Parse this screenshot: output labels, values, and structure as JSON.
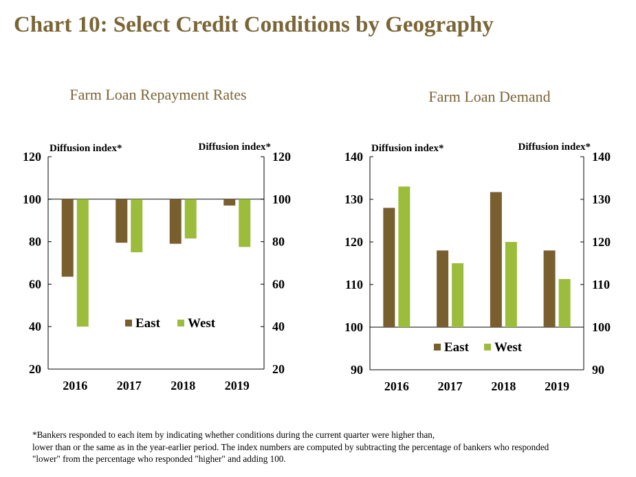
{
  "title": "Chart 10: Select Credit Conditions by Geography",
  "colors": {
    "title": "#7a6535",
    "east": "#7a5f2e",
    "west": "#9cbc3c"
  },
  "footnote": [
    "*Bankers responded to each item by indicating whether conditions during the current quarter were higher than,",
    "lower than or the same as in the year-earlier period.  The index numbers are computed by subtracting the percentage of bankers who responded",
    "\"lower\" from the percentage who responded \"higher\" and adding 100."
  ],
  "chart_data": [
    {
      "type": "bar",
      "title": "Farm Loan Repayment Rates",
      "ylabel_left": "Diffusion index*",
      "ylabel_right": "Diffusion index*",
      "categories": [
        "2016",
        "2017",
        "2018",
        "2019"
      ],
      "series": [
        {
          "name": "East",
          "values": [
            63.5,
            79.5,
            79,
            97
          ]
        },
        {
          "name": "West",
          "values": [
            40,
            75,
            81.5,
            77.5
          ]
        }
      ],
      "baseline": 100,
      "ylim": [
        20,
        120
      ],
      "yticks": [
        20,
        40,
        60,
        80,
        100,
        120
      ],
      "legend": "lower-center"
    },
    {
      "type": "bar",
      "title": "Farm Loan Demand",
      "ylabel_left": "Diffusion index*",
      "ylabel_right": "Diffusion index*",
      "categories": [
        "2016",
        "2017",
        "2018",
        "2019"
      ],
      "series": [
        {
          "name": "East",
          "values": [
            128,
            118,
            131.7,
            118
          ]
        },
        {
          "name": "West",
          "values": [
            133,
            115,
            120,
            111.3
          ]
        }
      ],
      "baseline": 100,
      "ylim": [
        90,
        140
      ],
      "yticks": [
        90,
        100,
        110,
        120,
        130,
        140
      ],
      "legend": "lower-center"
    }
  ]
}
